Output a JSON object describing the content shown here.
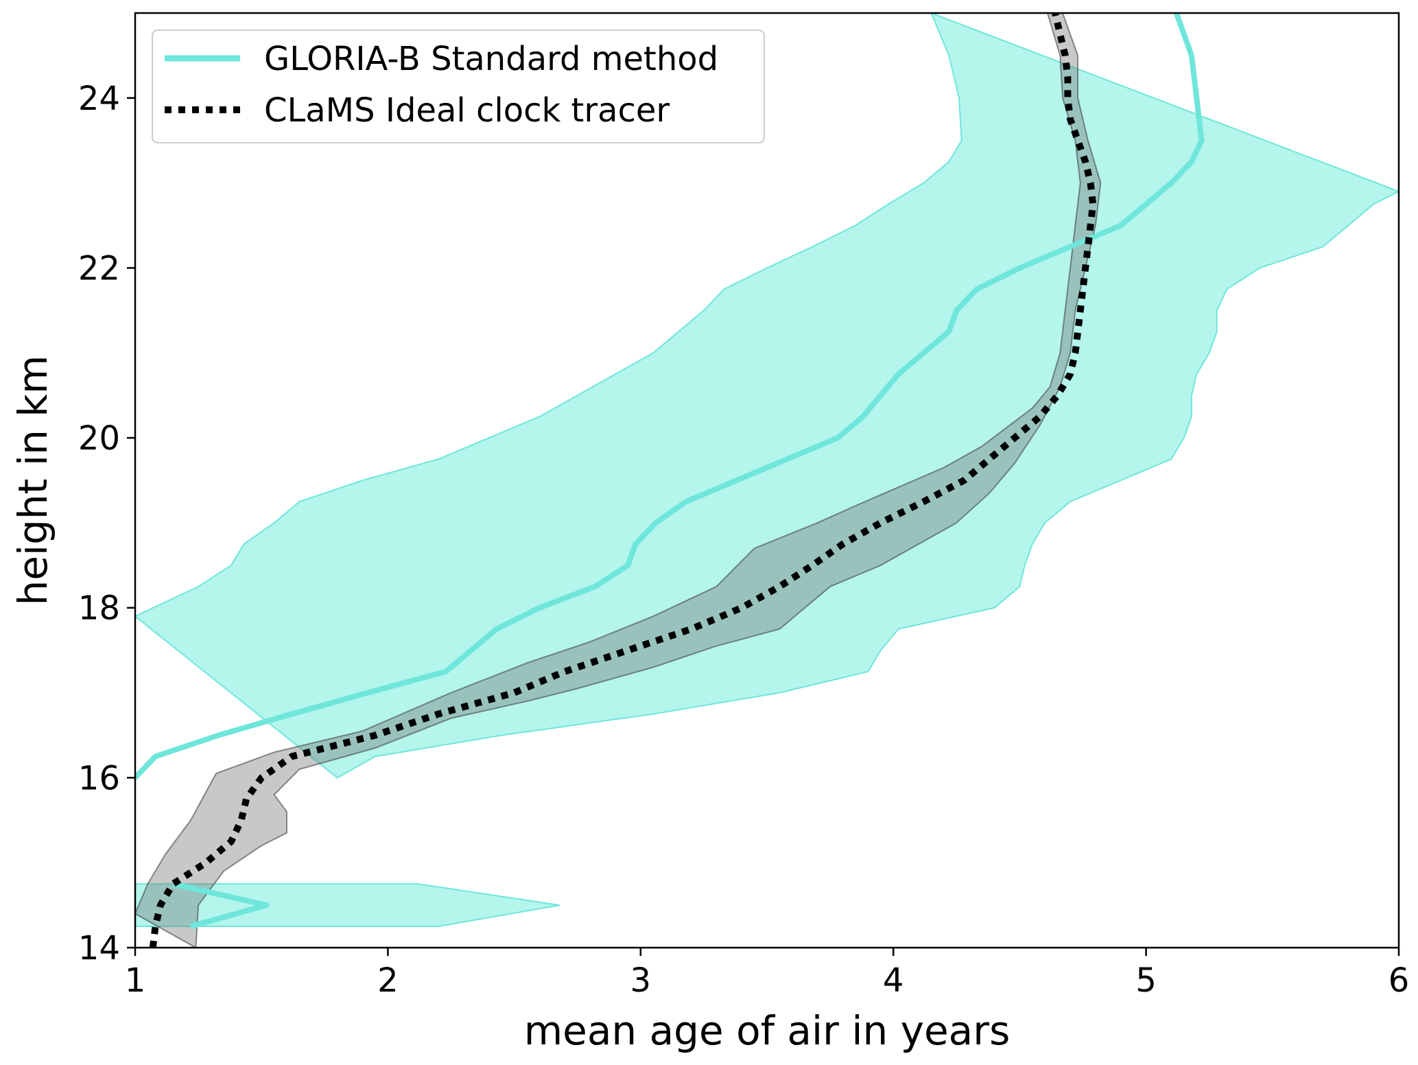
{
  "chart_data": {
    "type": "line",
    "title": "",
    "xlabel": "mean age of air in years",
    "ylabel": "height in km",
    "xlim": [
      1,
      6
    ],
    "ylim": [
      14,
      25
    ],
    "xticks": [
      1,
      2,
      3,
      4,
      5,
      6
    ],
    "yticks": [
      14,
      16,
      18,
      20,
      22,
      24
    ],
    "grid": false,
    "legend_position": "top-left",
    "colors": {
      "gloria_line": "#6fe6dc",
      "gloria_band": "#b4f5ec",
      "clams_line": "#000000",
      "clams_band": "#6e6e6e"
    },
    "series": [
      {
        "name": "GLORIA-B Standard method",
        "style": "solid",
        "points": [
          [
            1.0,
            16.0
          ],
          [
            1.08,
            16.25
          ],
          [
            1.33,
            16.5
          ],
          [
            1.62,
            16.75
          ],
          [
            1.92,
            17.0
          ],
          [
            2.23,
            17.25
          ],
          [
            2.43,
            17.75
          ],
          [
            2.6,
            18.0
          ],
          [
            2.82,
            18.25
          ],
          [
            2.95,
            18.5
          ],
          [
            2.98,
            18.75
          ],
          [
            3.06,
            19.0
          ],
          [
            3.18,
            19.25
          ],
          [
            3.58,
            19.75
          ],
          [
            3.78,
            20.0
          ],
          [
            3.88,
            20.25
          ],
          [
            3.95,
            20.5
          ],
          [
            4.02,
            20.75
          ],
          [
            4.12,
            21.0
          ],
          [
            4.22,
            21.25
          ],
          [
            4.25,
            21.5
          ],
          [
            4.33,
            21.75
          ],
          [
            4.5,
            22.0
          ],
          [
            4.7,
            22.25
          ],
          [
            4.9,
            22.5
          ],
          [
            5.0,
            22.75
          ],
          [
            5.1,
            23.0
          ],
          [
            5.18,
            23.25
          ],
          [
            5.22,
            23.5
          ],
          [
            5.2,
            24.0
          ],
          [
            5.18,
            24.5
          ],
          [
            5.12,
            25.0
          ]
        ],
        "extra_low": [
          [
            1.15,
            14.75
          ],
          [
            1.52,
            14.5
          ],
          [
            1.22,
            14.25
          ]
        ],
        "band": {
          "upper": [
            [
              1.0,
              17.9
            ],
            [
              1.25,
              18.25
            ],
            [
              1.38,
              18.5
            ],
            [
              1.43,
              18.75
            ],
            [
              1.55,
              19.0
            ],
            [
              1.65,
              19.25
            ],
            [
              1.9,
              19.5
            ],
            [
              2.2,
              19.75
            ],
            [
              2.4,
              20.0
            ],
            [
              2.6,
              20.25
            ],
            [
              2.75,
              20.5
            ],
            [
              2.9,
              20.75
            ],
            [
              3.05,
              21.0
            ],
            [
              3.15,
              21.25
            ],
            [
              3.25,
              21.5
            ],
            [
              3.33,
              21.75
            ],
            [
              3.5,
              22.0
            ],
            [
              3.68,
              22.25
            ],
            [
              3.85,
              22.5
            ],
            [
              3.98,
              22.75
            ],
            [
              4.12,
              23.0
            ],
            [
              4.22,
              23.25
            ],
            [
              4.27,
              23.5
            ],
            [
              4.26,
              24.0
            ],
            [
              4.22,
              24.5
            ],
            [
              4.15,
              25.0
            ]
          ],
          "lower": [
            [
              1.8,
              16.0
            ],
            [
              1.95,
              16.25
            ],
            [
              2.45,
              16.5
            ],
            [
              3.05,
              16.75
            ],
            [
              3.55,
              17.0
            ],
            [
              3.9,
              17.25
            ],
            [
              3.95,
              17.5
            ],
            [
              4.02,
              17.75
            ],
            [
              4.4,
              18.0
            ],
            [
              4.5,
              18.25
            ],
            [
              4.52,
              18.5
            ],
            [
              4.55,
              18.75
            ],
            [
              4.6,
              19.0
            ],
            [
              4.7,
              19.25
            ],
            [
              4.9,
              19.5
            ],
            [
              5.1,
              19.75
            ],
            [
              5.15,
              20.0
            ],
            [
              5.18,
              20.25
            ],
            [
              5.18,
              20.5
            ],
            [
              5.2,
              20.75
            ],
            [
              5.25,
              21.0
            ],
            [
              5.28,
              21.25
            ],
            [
              5.28,
              21.5
            ],
            [
              5.32,
              21.75
            ],
            [
              5.45,
              22.0
            ],
            [
              5.7,
              22.25
            ],
            [
              5.9,
              22.75
            ],
            [
              6.0,
              22.9
            ]
          ],
          "low_patch": [
            [
              1.0,
              14.75
            ],
            [
              2.12,
              14.75
            ],
            [
              2.68,
              14.5
            ],
            [
              2.2,
              14.25
            ],
            [
              1.0,
              14.25
            ]
          ]
        }
      },
      {
        "name": "CLaMS Ideal clock tracer",
        "style": "dotted",
        "points": [
          [
            1.07,
            14.0
          ],
          [
            1.08,
            14.25
          ],
          [
            1.1,
            14.5
          ],
          [
            1.15,
            14.75
          ],
          [
            1.28,
            15.0
          ],
          [
            1.38,
            15.25
          ],
          [
            1.42,
            15.5
          ],
          [
            1.44,
            15.75
          ],
          [
            1.5,
            16.0
          ],
          [
            1.62,
            16.25
          ],
          [
            1.95,
            16.5
          ],
          [
            2.2,
            16.75
          ],
          [
            2.5,
            17.0
          ],
          [
            2.7,
            17.25
          ],
          [
            2.95,
            17.5
          ],
          [
            3.2,
            17.75
          ],
          [
            3.4,
            18.0
          ],
          [
            3.55,
            18.25
          ],
          [
            3.68,
            18.5
          ],
          [
            3.8,
            18.75
          ],
          [
            3.95,
            19.0
          ],
          [
            4.12,
            19.25
          ],
          [
            4.28,
            19.5
          ],
          [
            4.38,
            19.75
          ],
          [
            4.48,
            20.0
          ],
          [
            4.58,
            20.25
          ],
          [
            4.65,
            20.5
          ],
          [
            4.7,
            20.75
          ],
          [
            4.72,
            21.0
          ],
          [
            4.73,
            21.25
          ],
          [
            4.74,
            21.5
          ],
          [
            4.75,
            21.75
          ],
          [
            4.76,
            22.0
          ],
          [
            4.77,
            22.25
          ],
          [
            4.78,
            22.5
          ],
          [
            4.79,
            22.75
          ],
          [
            4.78,
            23.0
          ],
          [
            4.76,
            23.25
          ],
          [
            4.73,
            23.5
          ],
          [
            4.7,
            23.75
          ],
          [
            4.69,
            24.0
          ],
          [
            4.69,
            24.25
          ],
          [
            4.68,
            24.5
          ],
          [
            4.66,
            24.75
          ],
          [
            4.64,
            25.0
          ]
        ],
        "band": {
          "upper": [
            [
              1.0,
              14.4
            ],
            [
              1.05,
              14.75
            ],
            [
              1.12,
              15.1
            ],
            [
              1.22,
              15.5
            ],
            [
              1.32,
              16.05
            ],
            [
              1.55,
              16.3
            ],
            [
              1.9,
              16.55
            ],
            [
              2.25,
              17.0
            ],
            [
              2.55,
              17.35
            ],
            [
              2.8,
              17.6
            ],
            [
              3.05,
              17.9
            ],
            [
              3.3,
              18.25
            ],
            [
              3.45,
              18.7
            ],
            [
              3.7,
              19.0
            ],
            [
              3.85,
              19.2
            ],
            [
              4.2,
              19.65
            ],
            [
              4.35,
              19.9
            ],
            [
              4.55,
              20.35
            ],
            [
              4.62,
              20.6
            ],
            [
              4.66,
              21.0
            ],
            [
              4.68,
              21.5
            ],
            [
              4.7,
              22.0
            ],
            [
              4.72,
              22.5
            ],
            [
              4.74,
              23.0
            ],
            [
              4.72,
              23.5
            ],
            [
              4.67,
              24.0
            ],
            [
              4.66,
              24.5
            ],
            [
              4.61,
              25.0
            ]
          ],
          "lower": [
            [
              1.24,
              14.0
            ],
            [
              1.25,
              14.5
            ],
            [
              1.35,
              14.9
            ],
            [
              1.5,
              15.2
            ],
            [
              1.6,
              15.35
            ],
            [
              1.6,
              15.6
            ],
            [
              1.55,
              15.8
            ],
            [
              1.65,
              16.1
            ],
            [
              1.95,
              16.35
            ],
            [
              2.25,
              16.7
            ],
            [
              2.55,
              16.9
            ],
            [
              2.75,
              17.05
            ],
            [
              3.05,
              17.3
            ],
            [
              3.3,
              17.55
            ],
            [
              3.55,
              17.75
            ],
            [
              3.75,
              18.25
            ],
            [
              3.95,
              18.5
            ],
            [
              4.1,
              18.75
            ],
            [
              4.25,
              19.0
            ],
            [
              4.38,
              19.35
            ],
            [
              4.48,
              19.7
            ],
            [
              4.58,
              20.15
            ],
            [
              4.66,
              20.6
            ],
            [
              4.7,
              21.0
            ],
            [
              4.72,
              21.5
            ],
            [
              4.76,
              22.0
            ],
            [
              4.8,
              22.5
            ],
            [
              4.82,
              23.0
            ],
            [
              4.77,
              23.5
            ],
            [
              4.73,
              24.0
            ],
            [
              4.73,
              24.5
            ],
            [
              4.67,
              25.0
            ]
          ]
        }
      }
    ]
  }
}
